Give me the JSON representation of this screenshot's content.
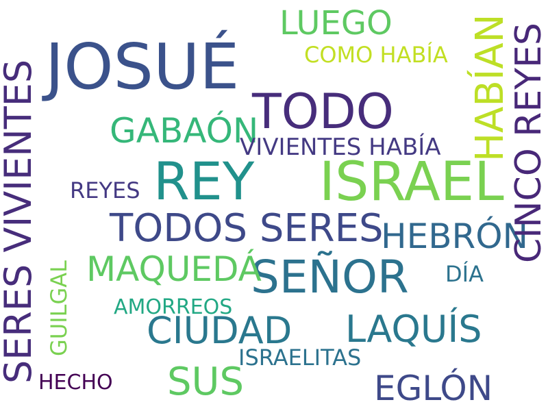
{
  "words": {
    "josue": {
      "text": "JOSUÉ",
      "color": "#3b528b"
    },
    "israel": {
      "text": "ISRAEL",
      "color": "#7ad151"
    },
    "rey": {
      "text": "REY",
      "color": "#21918c"
    },
    "todo": {
      "text": "TODO",
      "color": "#472d7b"
    },
    "senor": {
      "text": "SEÑOR",
      "color": "#2c728e"
    },
    "seres_viv": {
      "text": "SERES VIVIENTES",
      "color": "#472d7b"
    },
    "cinco_reyes": {
      "text": "CINCO REYES",
      "color": "#482878"
    },
    "habian": {
      "text": "HABÍAN",
      "color": "#bddf26"
    },
    "todos_seres": {
      "text": "TODOS SERES",
      "color": "#3e4989"
    },
    "ciudad": {
      "text": "CIUDAD",
      "color": "#2a788e"
    },
    "laquis": {
      "text": "LAQUÍS",
      "color": "#2a788e"
    },
    "maqueda": {
      "text": "MAQUEDÁ",
      "color": "#5ec962"
    },
    "gabaon": {
      "text": "GABAÓN",
      "color": "#35b779"
    },
    "hebron": {
      "text": "HEBRÓN",
      "color": "#31688e"
    },
    "luego": {
      "text": "LUEGO",
      "color": "#5ec962"
    },
    "sus": {
      "text": "SUS",
      "color": "#5ec962"
    },
    "eglon": {
      "text": "EGLÓN",
      "color": "#3e4989"
    },
    "viv_habia": {
      "text": "VIVIENTES HABÍA",
      "color": "#443a83"
    },
    "como_habia": {
      "text": "COMO HABÍA",
      "color": "#c2df23"
    },
    "reyes": {
      "text": "REYES",
      "color": "#443983"
    },
    "israelitas": {
      "text": "ISRAELITAS",
      "color": "#2c728e"
    },
    "amorreos": {
      "text": "AMORREOS",
      "color": "#22a884"
    },
    "guilgal": {
      "text": "GUILGAL",
      "color": "#7ad151"
    },
    "hecho": {
      "text": "HECHO",
      "color": "#440154"
    },
    "dia": {
      "text": "DÍA",
      "color": "#2c728e"
    }
  }
}
